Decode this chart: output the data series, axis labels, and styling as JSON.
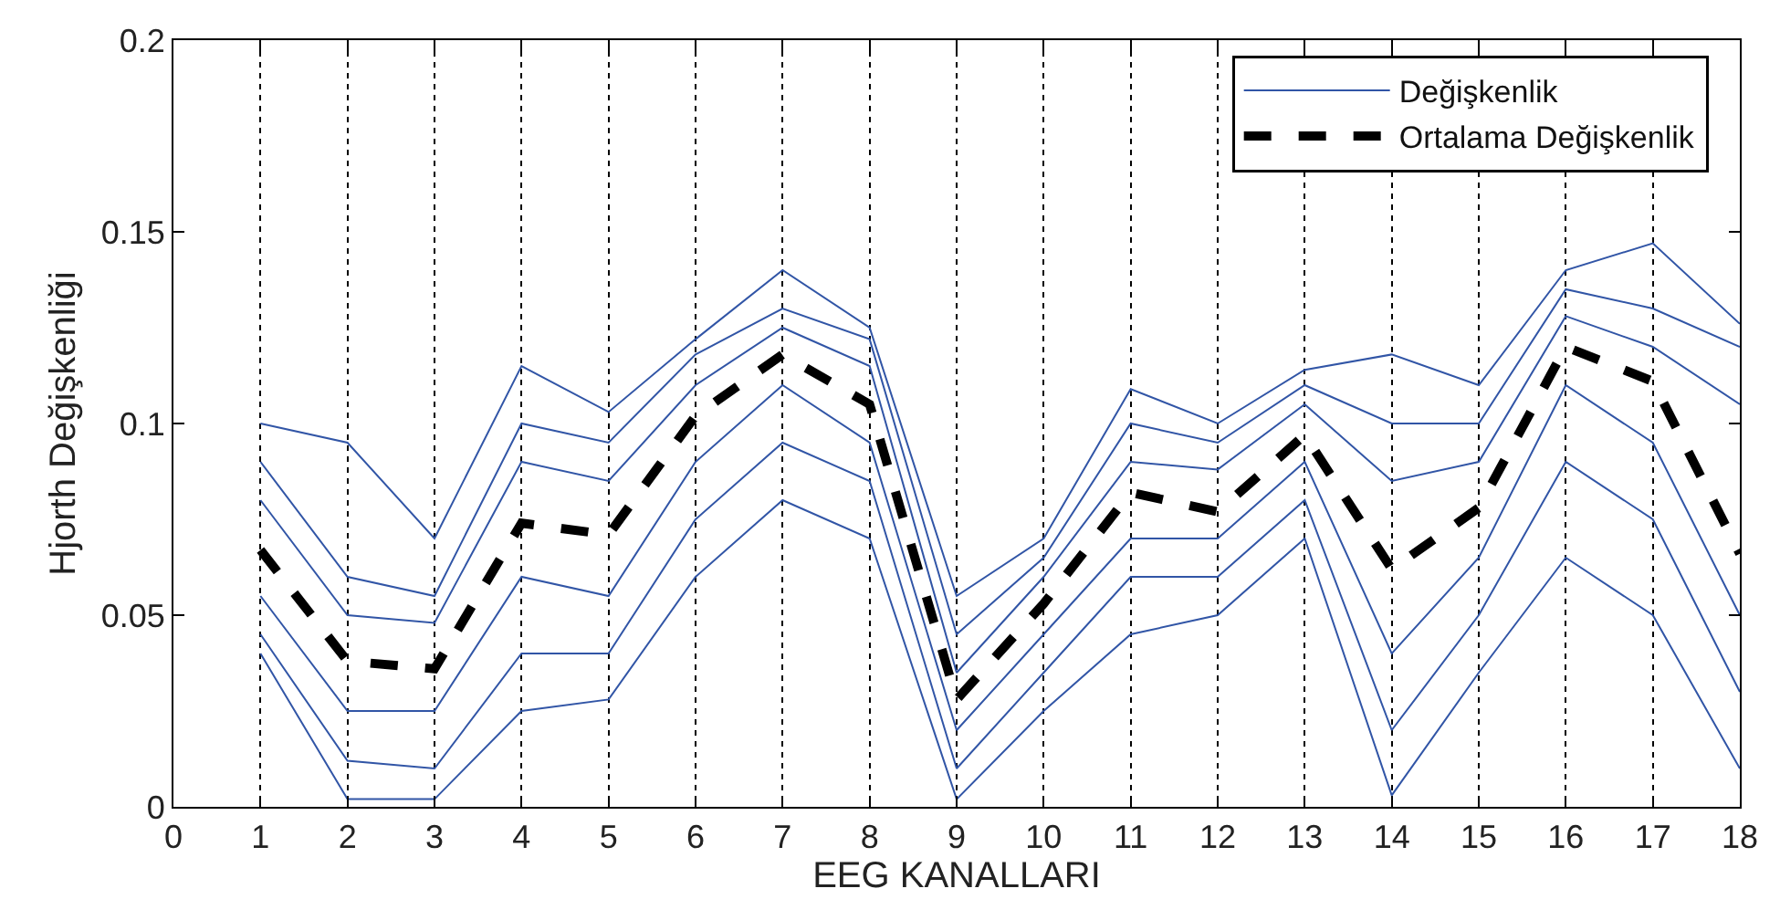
{
  "chart_data": {
    "type": "line",
    "xlabel": "EEG KANALLARI",
    "ylabel": "Hjorth Değişkenliği",
    "x": [
      1,
      2,
      3,
      4,
      5,
      6,
      7,
      8,
      9,
      10,
      11,
      12,
      13,
      14,
      15,
      16,
      17,
      18
    ],
    "xlim": [
      0,
      18
    ],
    "xticks": [
      0,
      1,
      2,
      3,
      4,
      5,
      6,
      7,
      8,
      9,
      10,
      11,
      12,
      13,
      14,
      15,
      16,
      17,
      18
    ],
    "ylim": [
      0,
      0.2
    ],
    "yticks": [
      0,
      0.05,
      0.1,
      0.15,
      0.2
    ],
    "grid": "x",
    "legend": "top right",
    "marker": "none",
    "series": [
      {
        "name": "Değişkenlik",
        "color": "#3155a6",
        "line_style": "solid",
        "values": [
          0.1,
          0.095,
          0.07,
          0.115,
          0.103,
          0.122,
          0.14,
          0.125,
          0.055,
          0.07,
          0.109,
          0.1,
          0.114,
          0.118,
          0.11,
          0.14,
          0.147,
          0.126
        ]
      },
      {
        "color": "#3155a6",
        "line_style": "solid",
        "values": [
          0.04,
          0.002,
          0.002,
          0.025,
          0.028,
          0.06,
          0.08,
          0.07,
          0.002,
          0.025,
          0.045,
          0.05,
          0.07,
          0.003,
          0.035,
          0.065,
          0.05,
          0.01
        ]
      },
      {
        "color": "#3155a6",
        "line_style": "solid",
        "values": [
          0.09,
          0.06,
          0.055,
          0.1,
          0.095,
          0.118,
          0.13,
          0.122,
          0.045,
          0.065,
          0.1,
          0.095,
          0.11,
          0.1,
          0.1,
          0.135,
          0.13,
          0.12
        ]
      },
      {
        "color": "#3155a6",
        "line_style": "solid",
        "values": [
          0.08,
          0.05,
          0.048,
          0.09,
          0.085,
          0.11,
          0.125,
          0.115,
          0.035,
          0.06,
          0.09,
          0.088,
          0.105,
          0.085,
          0.09,
          0.128,
          0.12,
          0.105
        ]
      },
      {
        "color": "#3155a6",
        "line_style": "solid",
        "values": [
          0.055,
          0.025,
          0.025,
          0.06,
          0.055,
          0.09,
          0.11,
          0.095,
          0.02,
          0.045,
          0.07,
          0.07,
          0.09,
          0.04,
          0.065,
          0.11,
          0.095,
          0.05
        ]
      },
      {
        "color": "#3155a6",
        "line_style": "solid",
        "values": [
          0.045,
          0.012,
          0.01,
          0.04,
          0.04,
          0.075,
          0.095,
          0.085,
          0.01,
          0.035,
          0.06,
          0.06,
          0.08,
          0.02,
          0.05,
          0.09,
          0.075,
          0.03
        ]
      },
      {
        "name": "Ortalama Değişkenlik",
        "color": "#000000",
        "line_style": "dashed",
        "values": [
          0.067,
          0.038,
          0.036,
          0.074,
          0.071,
          0.102,
          0.118,
          0.105,
          0.028,
          0.053,
          0.082,
          0.077,
          0.097,
          0.062,
          0.078,
          0.12,
          0.111,
          0.066
        ]
      }
    ]
  }
}
